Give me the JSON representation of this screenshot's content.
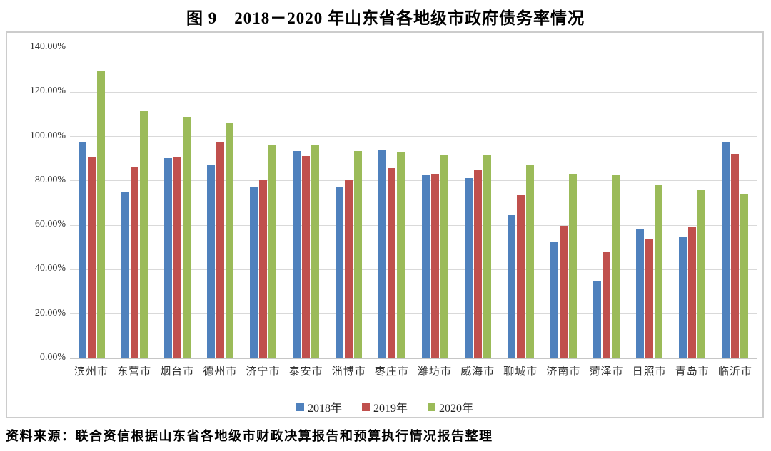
{
  "title": "图 9　2018－2020 年山东省各地级市政府债务率情况",
  "source_note": "资料来源：联合资信根据山东省各地级市财政决算报告和预算执行情况报告整理",
  "colors": {
    "series_2018": "#4F81BD",
    "series_2019": "#C0504D",
    "series_2020": "#9BBB59",
    "gridline": "#d9d9d9",
    "chart_border": "#cccccc",
    "axis_text": "#333333"
  },
  "chart_data": {
    "type": "bar",
    "title": "图 9　2018－2020 年山东省各地级市政府债务率情况",
    "categories": [
      "滨州市",
      "东营市",
      "烟台市",
      "德州市",
      "济宁市",
      "泰安市",
      "淄博市",
      "枣庄市",
      "潍坊市",
      "威海市",
      "聊城市",
      "济南市",
      "菏泽市",
      "日照市",
      "青岛市",
      "临沂市"
    ],
    "series": [
      {
        "name": "2018年",
        "color": "#4F81BD",
        "values": [
          97.5,
          75.3,
          90.4,
          87.0,
          77.4,
          93.4,
          77.3,
          94.0,
          82.4,
          81.4,
          64.7,
          52.4,
          34.7,
          58.4,
          54.6,
          97.4
        ]
      },
      {
        "name": "2019年",
        "color": "#C0504D",
        "values": [
          90.8,
          86.5,
          90.8,
          97.6,
          80.5,
          91.2,
          80.6,
          85.6,
          83.3,
          85.2,
          74.0,
          59.8,
          48.0,
          53.7,
          59.2,
          92.2
        ]
      },
      {
        "name": "2020年",
        "color": "#9BBB59",
        "values": [
          129.5,
          111.4,
          108.8,
          106.0,
          96.0,
          96.1,
          93.4,
          92.9,
          92.0,
          91.4,
          87.1,
          83.1,
          82.4,
          77.9,
          75.9,
          74.2
        ]
      }
    ],
    "xlabel": "",
    "ylabel": "",
    "ylim": [
      0,
      140
    ],
    "ytick_step": 20,
    "ytick_labels": [
      "0.00%",
      "20.00%",
      "40.00%",
      "60.00%",
      "80.00%",
      "100.00%",
      "120.00%",
      "140.00%"
    ],
    "grid": true,
    "legend_position": "bottom"
  }
}
